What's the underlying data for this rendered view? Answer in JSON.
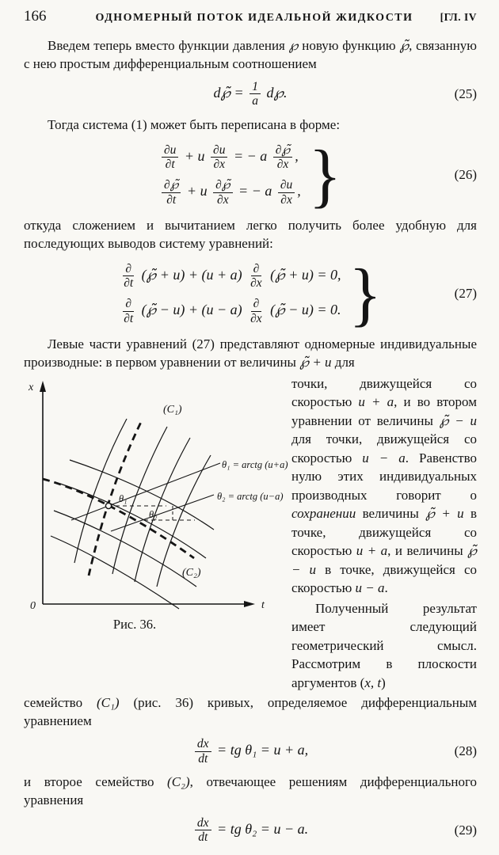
{
  "page": {
    "number": "166",
    "running_title": "ОДНОМЕРНЫЙ ПОТОК ИДЕАЛЬНОЙ ЖИДКОСТИ",
    "chapter": "[ГЛ. IV"
  },
  "paragraphs": {
    "p1": [
      {
        "v": "Введем теперь вместо функции давления "
      },
      {
        "v": "℘",
        "i": true
      },
      {
        "v": " новую функцию "
      },
      {
        "v": "℘̃",
        "i": true
      },
      {
        "v": ", связанную с нею простым дифференциальным соотношением"
      }
    ],
    "p2": [
      {
        "v": "Тогда система (1) может быть переписана в форме:"
      }
    ],
    "p3": [
      {
        "v": "откуда сложением и вычитанием легко получить более удобную для последующих выводов систему уравнений:"
      }
    ],
    "p4": [
      {
        "v": "Левые части уравнений (27) представляют одномерные индивидуальные производные: в первом уравнении от величины "
      },
      {
        "v": "℘̃ + u",
        "i": true
      },
      {
        "v": " для"
      }
    ],
    "p5": [
      {
        "v": "точки, движущейся со скоростью "
      },
      {
        "v": "u + a",
        "i": true
      },
      {
        "v": ", и во втором уравнении от величины "
      },
      {
        "v": "℘̃ − u",
        "i": true
      },
      {
        "v": " для точки, движущейся со скоростью "
      },
      {
        "v": "u − a",
        "i": true
      },
      {
        "v": ". Равенство нулю этих индивидуальных производных говорит о "
      },
      {
        "v": "сохранении",
        "i": true
      },
      {
        "v": " величины "
      },
      {
        "v": "℘̃ + u",
        "i": true
      },
      {
        "v": " в точке, движущейся со скоростью "
      },
      {
        "v": "u + a",
        "i": true
      },
      {
        "v": ", и величины "
      },
      {
        "v": "℘̃ − u",
        "i": true
      },
      {
        "v": " в точке, движущейся со скоростью "
      },
      {
        "v": "u − a",
        "i": true
      },
      {
        "v": "."
      }
    ],
    "p6": [
      {
        "v": "Полученный результат имеет следующий геометрический смысл. Рассмотрим в плоскости аргументов ("
      },
      {
        "v": "x, t",
        "i": true
      },
      {
        "v": ")"
      }
    ],
    "p7": [
      {
        "v": "семейство "
      },
      {
        "v": "(C₁)",
        "i": true
      },
      {
        "v": " (рис. 36) кривых, определяемое дифференциальным уравнением"
      }
    ],
    "p8": [
      {
        "v": "и второе семейство "
      },
      {
        "v": "(C₂)",
        "i": true
      },
      {
        "v": ", отвечающее решениям дифференциального уравнения"
      }
    ]
  },
  "equations": {
    "eq25": {
      "number": "(25)",
      "tokens": [
        {
          "v": "d℘̃ = "
        },
        {
          "f": [
            "1",
            "a"
          ]
        },
        {
          "v": " d℘."
        }
      ]
    },
    "eq26": {
      "number": "(26)",
      "row1": [
        {
          "f": [
            "∂u",
            "∂t"
          ]
        },
        {
          "v": " + u "
        },
        {
          "f": [
            "∂u",
            "∂x"
          ]
        },
        {
          "v": " = − a "
        },
        {
          "f": [
            "∂℘̃",
            "∂x"
          ]
        },
        {
          "v": ","
        }
      ],
      "row2": [
        {
          "f": [
            "∂℘̃",
            "∂t"
          ]
        },
        {
          "v": " + u "
        },
        {
          "f": [
            "∂℘̃",
            "∂x"
          ]
        },
        {
          "v": " = − a "
        },
        {
          "f": [
            "∂u",
            "∂x"
          ]
        },
        {
          "v": ","
        }
      ]
    },
    "eq27": {
      "number": "(27)",
      "row1": [
        {
          "f": [
            "∂",
            "∂t"
          ]
        },
        {
          "v": " (℘̃ + u) + (u + a) "
        },
        {
          "f": [
            "∂",
            "∂x"
          ]
        },
        {
          "v": " (℘̃ + u) = 0,"
        }
      ],
      "row2": [
        {
          "f": [
            "∂",
            "∂t"
          ]
        },
        {
          "v": " (℘̃ − u) + (u − a) "
        },
        {
          "f": [
            "∂",
            "∂x"
          ]
        },
        {
          "v": " (℘̃ − u) = 0."
        }
      ]
    },
    "eq28": {
      "number": "(28)",
      "tokens": [
        {
          "f": [
            "dx",
            "dt"
          ]
        },
        {
          "v": " = tg θ₁ = u + a,"
        }
      ]
    },
    "eq29": {
      "number": "(29)",
      "tokens": [
        {
          "f": [
            "dx",
            "dt"
          ]
        },
        {
          "v": " = tg θ₂ = u − a."
        }
      ]
    }
  },
  "figure": {
    "caption": "Рис. 36.",
    "x_axis_label": "x",
    "t_axis_label": "t",
    "origin_label": "0",
    "c1_label": "(C₁)",
    "c2_label": "(C₂)",
    "theta1_label": "θ₁",
    "theta2_label": "θ₂",
    "theta1_formula": "θ₁ = arctg (u+a)",
    "theta2_formula": "θ₂ = arctg (u−a)"
  }
}
